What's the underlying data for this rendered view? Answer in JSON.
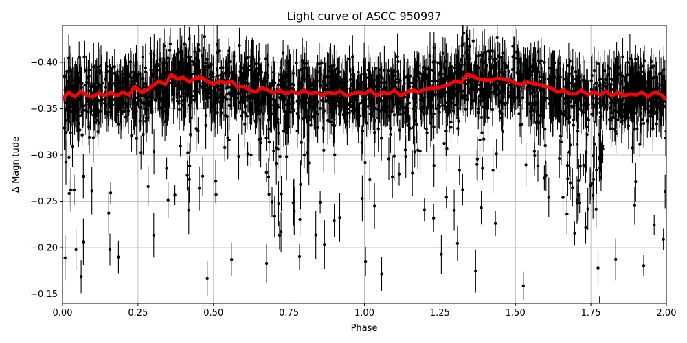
{
  "chart_data": {
    "type": "scatter",
    "title": "Light curve of ASCC 950997",
    "xlabel": "Phase",
    "ylabel": "Δ Magnitude",
    "xlim": [
      0.0,
      2.0
    ],
    "ylim": [
      -0.14,
      -0.44
    ],
    "y_inverted": true,
    "grid": true,
    "x_ticks": [
      0.0,
      0.25,
      0.5,
      0.75,
      1.0,
      1.25,
      1.5,
      1.75,
      2.0
    ],
    "x_tick_labels": [
      "0.00",
      "0.25",
      "0.50",
      "0.75",
      "1.00",
      "1.25",
      "1.50",
      "1.75",
      "2.00"
    ],
    "y_ticks": [
      -0.4,
      -0.35,
      -0.3,
      -0.25,
      -0.2,
      -0.15
    ],
    "y_tick_labels": [
      "−0.40",
      "−0.35",
      "−0.30",
      "−0.25",
      "−0.20",
      "−0.15"
    ],
    "series": [
      {
        "kind": "points_with_errorbars",
        "color": "#000000",
        "marker": "circle",
        "typical_center": -0.37,
        "typical_scatter": 0.03,
        "typical_errorbar": 0.018,
        "sparse_tail_toward": -0.15,
        "deep_scatter_phases": [
          0.72,
          1.72
        ]
      },
      {
        "kind": "binned_line",
        "color": "#ff0000",
        "x": [
          0.0,
          0.02,
          0.04,
          0.06,
          0.08,
          0.1,
          0.12,
          0.14,
          0.16,
          0.18,
          0.2,
          0.22,
          0.24,
          0.26,
          0.28,
          0.3,
          0.32,
          0.34,
          0.36,
          0.38,
          0.4,
          0.42,
          0.44,
          0.46,
          0.48,
          0.5,
          0.52,
          0.54,
          0.56,
          0.58,
          0.6,
          0.62,
          0.64,
          0.66,
          0.68,
          0.7,
          0.72,
          0.74,
          0.76,
          0.78,
          0.8,
          0.82,
          0.84,
          0.86,
          0.88,
          0.9,
          0.92,
          0.94,
          0.96,
          0.98,
          1.0,
          1.02,
          1.04,
          1.06,
          1.08,
          1.1,
          1.12,
          1.14,
          1.16,
          1.18,
          1.2,
          1.22,
          1.24,
          1.26,
          1.28,
          1.3,
          1.32,
          1.34,
          1.36,
          1.38,
          1.4,
          1.42,
          1.44,
          1.46,
          1.48,
          1.5,
          1.52,
          1.54,
          1.56,
          1.58,
          1.6,
          1.62,
          1.64,
          1.66,
          1.68,
          1.7,
          1.72,
          1.74,
          1.76,
          1.78,
          1.8,
          1.82,
          1.84,
          1.86,
          1.88,
          1.9,
          1.92,
          1.94,
          1.96,
          1.98,
          2.0
        ],
        "y": [
          -0.36,
          -0.368,
          -0.363,
          -0.369,
          -0.364,
          -0.363,
          -0.367,
          -0.364,
          -0.368,
          -0.364,
          -0.368,
          -0.365,
          -0.374,
          -0.368,
          -0.37,
          -0.375,
          -0.38,
          -0.376,
          -0.387,
          -0.382,
          -0.384,
          -0.379,
          -0.383,
          -0.384,
          -0.38,
          -0.376,
          -0.38,
          -0.378,
          -0.38,
          -0.373,
          -0.374,
          -0.37,
          -0.368,
          -0.373,
          -0.37,
          -0.367,
          -0.37,
          -0.366,
          -0.369,
          -0.366,
          -0.37,
          -0.366,
          -0.368,
          -0.364,
          -0.368,
          -0.366,
          -0.369,
          -0.364,
          -0.366,
          -0.368,
          -0.366,
          -0.37,
          -0.364,
          -0.368,
          -0.366,
          -0.37,
          -0.364,
          -0.368,
          -0.37,
          -0.368,
          -0.371,
          -0.372,
          -0.372,
          -0.374,
          -0.376,
          -0.38,
          -0.378,
          -0.387,
          -0.385,
          -0.382,
          -0.381,
          -0.381,
          -0.383,
          -0.382,
          -0.381,
          -0.378,
          -0.376,
          -0.379,
          -0.377,
          -0.376,
          -0.374,
          -0.372,
          -0.368,
          -0.37,
          -0.366,
          -0.366,
          -0.37,
          -0.365,
          -0.368,
          -0.365,
          -0.369,
          -0.364,
          -0.368,
          -0.364,
          -0.366,
          -0.365,
          -0.368,
          -0.363,
          -0.368,
          -0.366,
          -0.36
        ]
      }
    ]
  }
}
